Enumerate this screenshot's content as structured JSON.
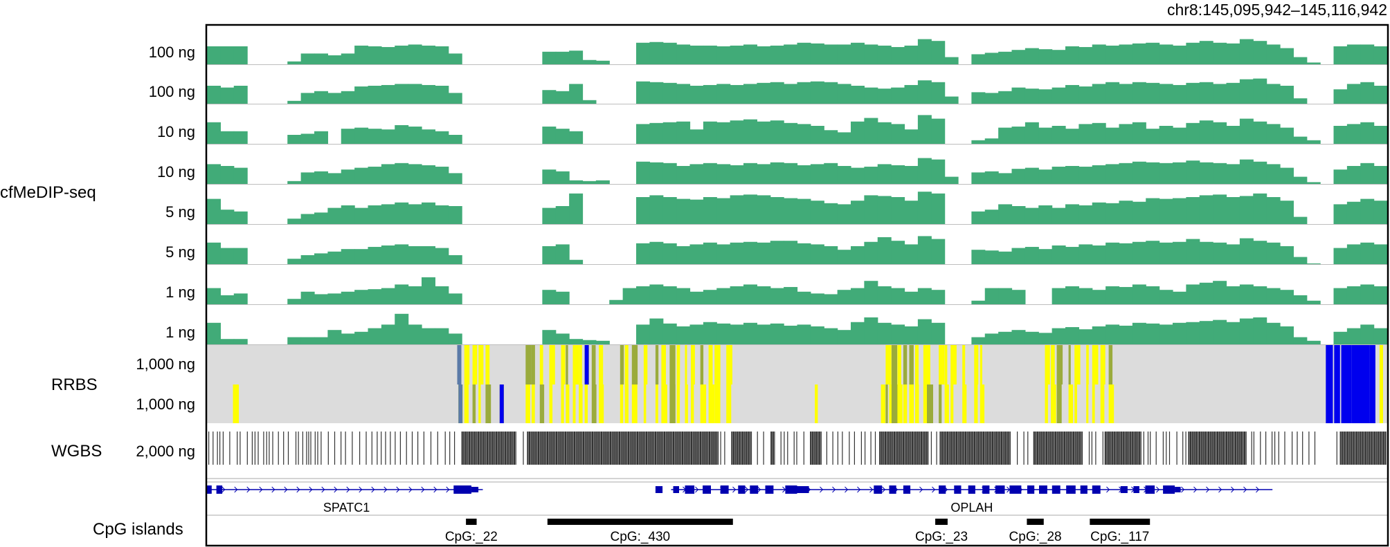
{
  "locus": "chr8:145,095,942–145,116,942",
  "colors": {
    "coverage": "#41ab78",
    "rrbs_background": "#dcdcdc",
    "methylated": "#ffff00",
    "partial": "#9aab3c",
    "unmethylated": "#0000ee",
    "wgbs": "#333333",
    "gene": "#0000b0",
    "cpg": "#000000"
  },
  "groups": {
    "cfmedip": "cfMeDIP-seq",
    "rrbs": "RRBS",
    "wgbs": "WGBS"
  },
  "cpg_track_label": "CpG islands",
  "chart_data": {
    "type": "genome-browser",
    "x_range": [
      145095942,
      145116942
    ],
    "tracks": [
      {
        "group": "cfMeDIP-seq",
        "input": "100 ng",
        "values": [
          0.5,
          0.5,
          0.5,
          0,
          0,
          0,
          0.08,
          0.3,
          0.3,
          0.25,
          0.3,
          0.52,
          0.5,
          0.48,
          0.52,
          0.55,
          0.52,
          0.5,
          0.3,
          0,
          0,
          0,
          0,
          0,
          0,
          0.35,
          0.35,
          0.38,
          0.12,
          0.1,
          0,
          0,
          0.6,
          0.62,
          0.6,
          0.55,
          0.52,
          0.52,
          0.5,
          0.52,
          0.55,
          0.5,
          0.52,
          0.55,
          0.6,
          0.58,
          0.55,
          0.55,
          0.6,
          0.55,
          0.52,
          0.48,
          0.52,
          0.7,
          0.65,
          0.2,
          0,
          0.28,
          0.32,
          0.35,
          0.4,
          0.45,
          0.42,
          0.4,
          0.5,
          0.48,
          0.55,
          0.52,
          0.55,
          0.58,
          0.6,
          0.55,
          0.52,
          0.6,
          0.65,
          0.6,
          0.58,
          0.7,
          0.65,
          0.55,
          0.45,
          0.2,
          0.05,
          0,
          0.5,
          0.55,
          0.55,
          0.5
        ]
      },
      {
        "group": "cfMeDIP-seq",
        "input": "100 ng",
        "values": [
          0.5,
          0.45,
          0.5,
          0,
          0,
          0,
          0.08,
          0.3,
          0.35,
          0.3,
          0.35,
          0.48,
          0.5,
          0.52,
          0.55,
          0.55,
          0.52,
          0.5,
          0.3,
          0,
          0,
          0,
          0,
          0,
          0,
          0.38,
          0.35,
          0.55,
          0.1,
          0,
          0,
          0,
          0.62,
          0.6,
          0.58,
          0.55,
          0.5,
          0.52,
          0.55,
          0.52,
          0.55,
          0.58,
          0.6,
          0.55,
          0.6,
          0.62,
          0.6,
          0.55,
          0.5,
          0.45,
          0.42,
          0.45,
          0.52,
          0.65,
          0.6,
          0.2,
          0,
          0.32,
          0.3,
          0.35,
          0.45,
          0.42,
          0.4,
          0.45,
          0.52,
          0.48,
          0.55,
          0.6,
          0.55,
          0.6,
          0.58,
          0.55,
          0.52,
          0.58,
          0.6,
          0.55,
          0.58,
          0.68,
          0.7,
          0.55,
          0.5,
          0.15,
          0,
          0,
          0.4,
          0.55,
          0.6,
          0.5
        ]
      },
      {
        "group": "cfMeDIP-seq",
        "input": "10 ng",
        "values": [
          0.6,
          0.35,
          0.35,
          0,
          0,
          0,
          0.25,
          0.28,
          0.35,
          0,
          0.42,
          0.45,
          0.42,
          0.4,
          0.52,
          0.48,
          0.4,
          0.35,
          0.25,
          0,
          0,
          0,
          0,
          0,
          0,
          0.48,
          0.42,
          0.35,
          0,
          0,
          0,
          0,
          0.55,
          0.58,
          0.6,
          0.62,
          0.4,
          0.62,
          0.6,
          0.65,
          0.68,
          0.62,
          0.65,
          0.58,
          0.55,
          0.5,
          0.38,
          0.32,
          0.62,
          0.72,
          0.6,
          0.55,
          0.4,
          0.8,
          0.7,
          0.0,
          0,
          0.1,
          0.15,
          0.45,
          0.48,
          0.6,
          0.45,
          0.5,
          0.42,
          0.55,
          0.58,
          0.45,
          0.55,
          0.6,
          0.42,
          0.5,
          0.45,
          0.58,
          0.65,
          0.6,
          0.5,
          0.7,
          0.62,
          0.55,
          0.45,
          0.2,
          0.1,
          0,
          0.5,
          0.55,
          0.6,
          0.5
        ]
      },
      {
        "group": "cfMeDIP-seq",
        "input": "10 ng",
        "values": [
          0.55,
          0.5,
          0.45,
          0,
          0,
          0,
          0.08,
          0.32,
          0.35,
          0.3,
          0.4,
          0.45,
          0.48,
          0.55,
          0.58,
          0.55,
          0.52,
          0.48,
          0.3,
          0,
          0,
          0,
          0,
          0,
          0,
          0.4,
          0.35,
          0.1,
          0.08,
          0.1,
          0,
          0,
          0.62,
          0.6,
          0.58,
          0.5,
          0.55,
          0.58,
          0.55,
          0.52,
          0.58,
          0.55,
          0.6,
          0.58,
          0.52,
          0.55,
          0.58,
          0.5,
          0.45,
          0.48,
          0.55,
          0.52,
          0.5,
          0.72,
          0.68,
          0.2,
          0,
          0.32,
          0.35,
          0.3,
          0.42,
          0.45,
          0.4,
          0.48,
          0.5,
          0.48,
          0.52,
          0.55,
          0.58,
          0.62,
          0.6,
          0.58,
          0.6,
          0.65,
          0.6,
          0.58,
          0.55,
          0.68,
          0.62,
          0.55,
          0.45,
          0.2,
          0.05,
          0,
          0.4,
          0.5,
          0.58,
          0.5
        ]
      },
      {
        "group": "cfMeDIP-seq",
        "input": "5 ng",
        "values": [
          0.7,
          0.4,
          0.35,
          0,
          0,
          0,
          0.15,
          0.28,
          0.32,
          0.45,
          0.52,
          0.45,
          0.52,
          0.55,
          0.6,
          0.55,
          0.6,
          0.52,
          0.5,
          0,
          0,
          0,
          0,
          0,
          0,
          0.45,
          0.5,
          0.85,
          0,
          0,
          0,
          0,
          0.75,
          0.8,
          0.75,
          0.7,
          0.68,
          0.75,
          0.72,
          0.8,
          0.82,
          0.8,
          0.75,
          0.72,
          0.7,
          0.65,
          0.58,
          0.55,
          0.65,
          0.8,
          0.78,
          0.75,
          0.65,
          0.9,
          0.85,
          0,
          0,
          0.35,
          0.4,
          0.55,
          0.5,
          0.45,
          0.52,
          0.45,
          0.55,
          0.52,
          0.6,
          0.58,
          0.65,
          0.62,
          0.72,
          0.7,
          0.72,
          0.75,
          0.8,
          0.82,
          0.75,
          0.78,
          0.85,
          0.75,
          0.65,
          0.2,
          0,
          0,
          0.55,
          0.62,
          0.7,
          0.65
        ]
      },
      {
        "group": "cfMeDIP-seq",
        "input": "5 ng",
        "values": [
          0.6,
          0.45,
          0.45,
          0,
          0,
          0,
          0.15,
          0.25,
          0.3,
          0.35,
          0.42,
          0.42,
          0.48,
          0.52,
          0.55,
          0.5,
          0.5,
          0.45,
          0.25,
          0,
          0,
          0,
          0,
          0,
          0,
          0.5,
          0.55,
          0.12,
          0,
          0,
          0,
          0,
          0.58,
          0.62,
          0.58,
          0.5,
          0.55,
          0.6,
          0.55,
          0.6,
          0.62,
          0.6,
          0.65,
          0.65,
          0.58,
          0.55,
          0.5,
          0.4,
          0.5,
          0.62,
          0.75,
          0.65,
          0.55,
          0.78,
          0.7,
          0,
          0,
          0.4,
          0.38,
          0.35,
          0.45,
          0.48,
          0.42,
          0.52,
          0.48,
          0.55,
          0.52,
          0.6,
          0.58,
          0.62,
          0.65,
          0.6,
          0.62,
          0.7,
          0.62,
          0.6,
          0.55,
          0.72,
          0.65,
          0.6,
          0.5,
          0.2,
          0.02,
          0,
          0.45,
          0.55,
          0.6,
          0.55
        ]
      },
      {
        "group": "cfMeDIP-seq",
        "input": "1 ng",
        "values": [
          0.45,
          0.25,
          0.3,
          0,
          0,
          0,
          0.15,
          0.35,
          0.28,
          0.3,
          0.35,
          0.4,
          0.42,
          0.45,
          0.55,
          0.5,
          0.75,
          0.5,
          0.3,
          0,
          0,
          0,
          0,
          0,
          0,
          0.4,
          0.35,
          0.0,
          0,
          0,
          0.12,
          0.45,
          0.5,
          0.55,
          0.5,
          0.45,
          0.35,
          0.4,
          0.45,
          0.5,
          0.55,
          0.5,
          0.45,
          0.48,
          0.35,
          0.3,
          0.28,
          0.4,
          0.45,
          0.65,
          0.5,
          0.45,
          0.35,
          0.45,
          0.4,
          0,
          0,
          0.1,
          0.45,
          0.45,
          0.4,
          0,
          0,
          0.45,
          0.5,
          0.45,
          0.4,
          0.5,
          0.48,
          0.55,
          0.5,
          0.4,
          0.35,
          0.55,
          0.6,
          0.65,
          0.5,
          0.55,
          0.5,
          0.45,
          0.4,
          0.25,
          0.1,
          0,
          0.45,
          0.5,
          0.55,
          0.5
        ]
      },
      {
        "group": "cfMeDIP-seq",
        "input": "1 ng",
        "values": [
          0.6,
          0.15,
          0.15,
          0,
          0,
          0,
          0.2,
          0.2,
          0.2,
          0.4,
          0.3,
          0.35,
          0.45,
          0.55,
          0.85,
          0.55,
          0.45,
          0.45,
          0.3,
          0,
          0,
          0,
          0,
          0,
          0,
          0.4,
          0.3,
          0.15,
          0.12,
          0.1,
          0,
          0,
          0.55,
          0.72,
          0.58,
          0.5,
          0.55,
          0.62,
          0.58,
          0.55,
          0.6,
          0.55,
          0.58,
          0.52,
          0.55,
          0.5,
          0.45,
          0.4,
          0.62,
          0.75,
          0.6,
          0.55,
          0.5,
          0.7,
          0.6,
          0,
          0,
          0.2,
          0.3,
          0.35,
          0.4,
          0.35,
          0.32,
          0.45,
          0.48,
          0.42,
          0.5,
          0.55,
          0.52,
          0.6,
          0.58,
          0.55,
          0.6,
          0.62,
          0.65,
          0.68,
          0.62,
          0.72,
          0.75,
          0.6,
          0.5,
          0.2,
          0.1,
          0,
          0.35,
          0.45,
          0.55,
          0.45
        ]
      },
      {
        "group": "RRBS",
        "input": "1,000 ng"
      },
      {
        "group": "RRBS",
        "input": "1,000 ng"
      },
      {
        "group": "WGBS",
        "input": "2,000 ng"
      }
    ],
    "genes": [
      {
        "name": "SPATC1",
        "start": 145096000,
        "end": 145100850
      },
      {
        "name": "OPLAH",
        "start": 145104200,
        "end": 145114900
      }
    ],
    "cpg_islands": [
      {
        "name": "CpG:_22",
        "start": 145100550,
        "end": 145100740
      },
      {
        "name": "CpG:_430",
        "start": 145102000,
        "end": 145105300
      },
      {
        "name": "CpG:_23",
        "start": 145108900,
        "end": 145109120
      },
      {
        "name": "CpG:_28",
        "start": 145110530,
        "end": 145110830
      },
      {
        "name": "CpG:_117",
        "start": 145111650,
        "end": 145112720
      }
    ]
  }
}
